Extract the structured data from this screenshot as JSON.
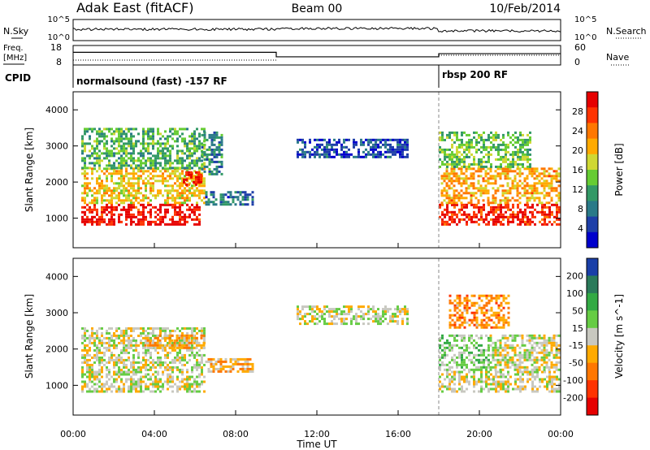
{
  "header": {
    "station": "Adak East (fitACF)",
    "beam": "Beam 00",
    "date": "10/Feb/2014"
  },
  "noise_panel": {
    "left_label": "N.Sky",
    "right_label": "N.Search",
    "left_ticks": [
      "10^5",
      "10^0"
    ],
    "right_ticks": [
      "10^5",
      "10^0"
    ]
  },
  "freq_panel": {
    "left_label_line1": "Freq.",
    "left_label_line2": "[MHz]",
    "right_label": "Nave",
    "left_ticks": [
      "18",
      "8"
    ],
    "right_ticks": [
      "60",
      "0"
    ],
    "frequency_steps": [
      {
        "start": "00:00",
        "end": "10:00",
        "freq_mhz": 14.5
      },
      {
        "start": "10:00",
        "end": "18:00",
        "freq_mhz": 12.2
      },
      {
        "start": "18:00",
        "end": "24:00",
        "freq_mhz": 13.8
      }
    ]
  },
  "cpid_panel": {
    "label": "CPID",
    "programs": [
      {
        "name": "normalsound (fast) -157 RF",
        "start": "00:00"
      },
      {
        "name": "rbsp 200 RF",
        "start": "18:00"
      }
    ]
  },
  "chart_data": [
    {
      "type": "heatmap",
      "parameter": "Power",
      "ylabel": "Slant Range [km]",
      "xlabel": "",
      "ylim": [
        180,
        4500
      ],
      "yticks": [
        1000,
        2000,
        3000,
        4000
      ],
      "xlim": [
        "00:00",
        "24:00"
      ],
      "colorbar": {
        "label": "Power [dB]",
        "ticks": [
          "28",
          "24",
          "20",
          "16",
          "12",
          "8",
          "4"
        ],
        "colors": [
          "#e60000",
          "#ff3300",
          "#ff7700",
          "#ffaa00",
          "#cfd833",
          "#66cc33",
          "#339966",
          "#2a7a88",
          "#1e3fa8",
          "#0000cc"
        ],
        "range": [
          0,
          30
        ]
      },
      "echo_regions": [
        {
          "t": [
            0.4,
            6.2
          ],
          "r": [
            800,
            1400
          ],
          "value": 28
        },
        {
          "t": [
            0.4,
            6.5
          ],
          "r": [
            1400,
            2400
          ],
          "value": 18
        },
        {
          "t": [
            0.4,
            6.5
          ],
          "r": [
            2400,
            3500
          ],
          "value": 12
        },
        {
          "t": [
            5.4,
            6.3
          ],
          "r": [
            1900,
            2300
          ],
          "value": 27
        },
        {
          "t": [
            6.5,
            8.8
          ],
          "r": [
            1350,
            1750
          ],
          "value": 7
        },
        {
          "t": [
            6.3,
            7.3
          ],
          "r": [
            2200,
            3400
          ],
          "value": 9
        },
        {
          "t": [
            11.0,
            16.5
          ],
          "r": [
            2700,
            3200
          ],
          "value": 5
        },
        {
          "t": [
            18.0,
            24.0
          ],
          "r": [
            800,
            1400
          ],
          "value": 27
        },
        {
          "t": [
            18.1,
            24.0
          ],
          "r": [
            1400,
            2400
          ],
          "value": 20
        },
        {
          "t": [
            18.0,
            22.5
          ],
          "r": [
            2400,
            3400
          ],
          "value": 13
        }
      ]
    },
    {
      "type": "heatmap",
      "parameter": "Velocity",
      "ylabel": "Slant Range [km]",
      "xlabel": "Time UT",
      "ylim": [
        180,
        4500
      ],
      "yticks": [
        1000,
        2000,
        3000,
        4000
      ],
      "xlim": [
        "00:00",
        "24:00"
      ],
      "xticks": [
        "00:00",
        "04:00",
        "08:00",
        "12:00",
        "16:00",
        "20:00",
        "00:00"
      ],
      "colorbar": {
        "label": "Velocity [m s^-1]",
        "ticks": [
          "200",
          "100",
          "50",
          "15",
          "-15",
          "-50",
          "-100",
          "-200"
        ],
        "colors": [
          "#1a3fa8",
          "#2a7a5a",
          "#33aa44",
          "#66cc44",
          "#c8c8c0",
          "#ffaa00",
          "#ff7700",
          "#ff3300",
          "#e60000"
        ],
        "range": [
          -250,
          250
        ]
      },
      "echo_regions": [
        {
          "t": [
            0.4,
            6.5
          ],
          "r": [
            800,
            1400
          ],
          "value": 0
        },
        {
          "t": [
            0.4,
            6.5
          ],
          "r": [
            1400,
            2600
          ],
          "value": 5
        },
        {
          "t": [
            3.5,
            6.5
          ],
          "r": [
            2000,
            2400
          ],
          "value": -60
        },
        {
          "t": [
            6.5,
            8.8
          ],
          "r": [
            1350,
            1750
          ],
          "value": -55
        },
        {
          "t": [
            11.0,
            16.5
          ],
          "r": [
            2700,
            3200
          ],
          "value": 0
        },
        {
          "t": [
            18.0,
            24.0
          ],
          "r": [
            800,
            1400
          ],
          "value": 0
        },
        {
          "t": [
            18.0,
            20.5
          ],
          "r": [
            1400,
            2400
          ],
          "value": 45
        },
        {
          "t": [
            20.5,
            24.0
          ],
          "r": [
            1400,
            2400
          ],
          "value": 0
        },
        {
          "t": [
            18.5,
            21.5
          ],
          "r": [
            2600,
            3500
          ],
          "value": -90
        }
      ]
    }
  ]
}
